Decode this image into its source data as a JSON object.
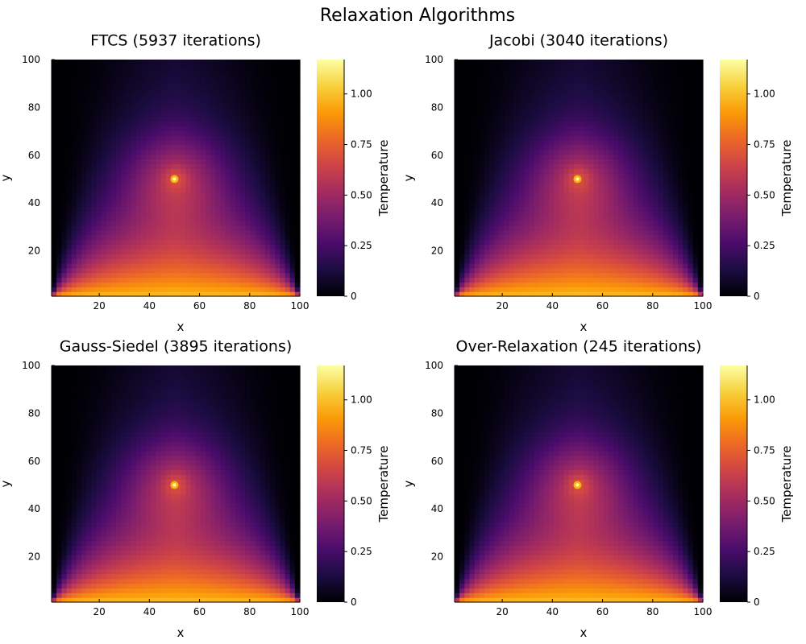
{
  "figure": {
    "title": "Relaxation Algorithms"
  },
  "colorbar": {
    "label": "Temperature",
    "range": [
      0,
      1.17
    ],
    "ticks": [
      0,
      0.25,
      0.5,
      0.75,
      1.0
    ],
    "tick_labels": [
      "0",
      "0.25",
      "0.50",
      "0.75",
      "1.00"
    ],
    "colormap": "inferno",
    "colormap_stops": [
      "#000004",
      "#1b0c41",
      "#4a0c6b",
      "#781c6d",
      "#a52c60",
      "#cf4446",
      "#ed6925",
      "#fb9b06",
      "#f7d13d",
      "#fcffa4"
    ]
  },
  "chart_data": [
    {
      "type": "heatmap",
      "title": "FTCS (5937 iterations)",
      "xlabel": "x",
      "ylabel": "y",
      "xlim": [
        1,
        100
      ],
      "ylim": [
        1,
        100
      ],
      "xticks": [
        20,
        40,
        60,
        80,
        100
      ],
      "yticks": [
        20,
        40,
        60,
        80,
        100
      ],
      "boundary": {
        "bottom": 1.0,
        "top": 0,
        "left": 0,
        "right": 0
      },
      "point_source": {
        "x": 50,
        "y": 50,
        "value": 1.17
      },
      "grid": false
    },
    {
      "type": "heatmap",
      "title": "Jacobi (3040 iterations)",
      "xlabel": "x",
      "ylabel": "y",
      "xlim": [
        1,
        100
      ],
      "ylim": [
        1,
        100
      ],
      "xticks": [
        20,
        40,
        60,
        80,
        100
      ],
      "yticks": [
        20,
        40,
        60,
        80,
        100
      ],
      "boundary": {
        "bottom": 1.0,
        "top": 0,
        "left": 0,
        "right": 0
      },
      "point_source": {
        "x": 50,
        "y": 50,
        "value": 1.17
      },
      "grid": false
    },
    {
      "type": "heatmap",
      "title": "Gauss-Siedel (3895 iterations)",
      "xlabel": "x",
      "ylabel": "y",
      "xlim": [
        1,
        100
      ],
      "ylim": [
        1,
        100
      ],
      "xticks": [
        20,
        40,
        60,
        80,
        100
      ],
      "yticks": [
        20,
        40,
        60,
        80,
        100
      ],
      "boundary": {
        "bottom": 1.0,
        "top": 0,
        "left": 0,
        "right": 0
      },
      "point_source": {
        "x": 50,
        "y": 50,
        "value": 1.17
      },
      "grid": false
    },
    {
      "type": "heatmap",
      "title": "Over-Relaxation (245 iterations)",
      "xlabel": "x",
      "ylabel": "y",
      "xlim": [
        1,
        100
      ],
      "ylim": [
        1,
        100
      ],
      "xticks": [
        20,
        40,
        60,
        80,
        100
      ],
      "yticks": [
        20,
        40,
        60,
        80,
        100
      ],
      "boundary": {
        "bottom": 1.0,
        "top": 0,
        "left": 0,
        "right": 0
      },
      "point_source": {
        "x": 50,
        "y": 50,
        "value": 1.17
      },
      "grid": false
    }
  ]
}
